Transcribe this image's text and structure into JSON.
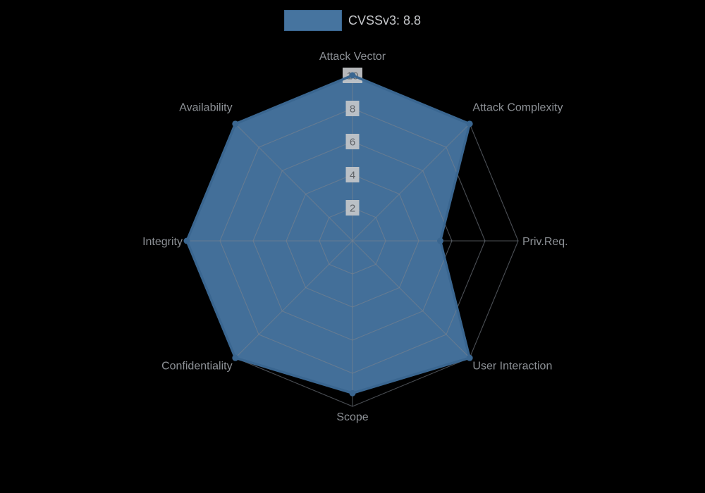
{
  "page": {
    "background": "#000000"
  },
  "chart_data": {
    "type": "radar",
    "title": "",
    "legend_position": "top",
    "grid_shape": "polygon",
    "first_axis": "top",
    "direction": "clockwise",
    "categories": [
      "Attack Vector",
      "Attack Complexity",
      "Priv.Req.",
      "User Interaction",
      "Scope",
      "Confidentiality",
      "Integrity",
      "Availability"
    ],
    "series": [
      {
        "name": "CVSSv3: 8.8",
        "values": [
          10,
          10,
          5.3,
          10,
          9.2,
          10,
          10,
          10
        ]
      }
    ],
    "rmax": 10,
    "rticks": [
      2,
      4,
      6,
      8,
      10
    ],
    "colors": {
      "fill": "#46749f",
      "fill_opacity": 0.96,
      "border": "#3a6690",
      "point": "#3a6690",
      "grid": "rgba(125,132,142,0.6)",
      "tick_backdrop": "#c4c7ca",
      "tick_text": "#5f6368",
      "axis_label": "#8d9196",
      "legend_text": "#c4c6c9"
    }
  }
}
